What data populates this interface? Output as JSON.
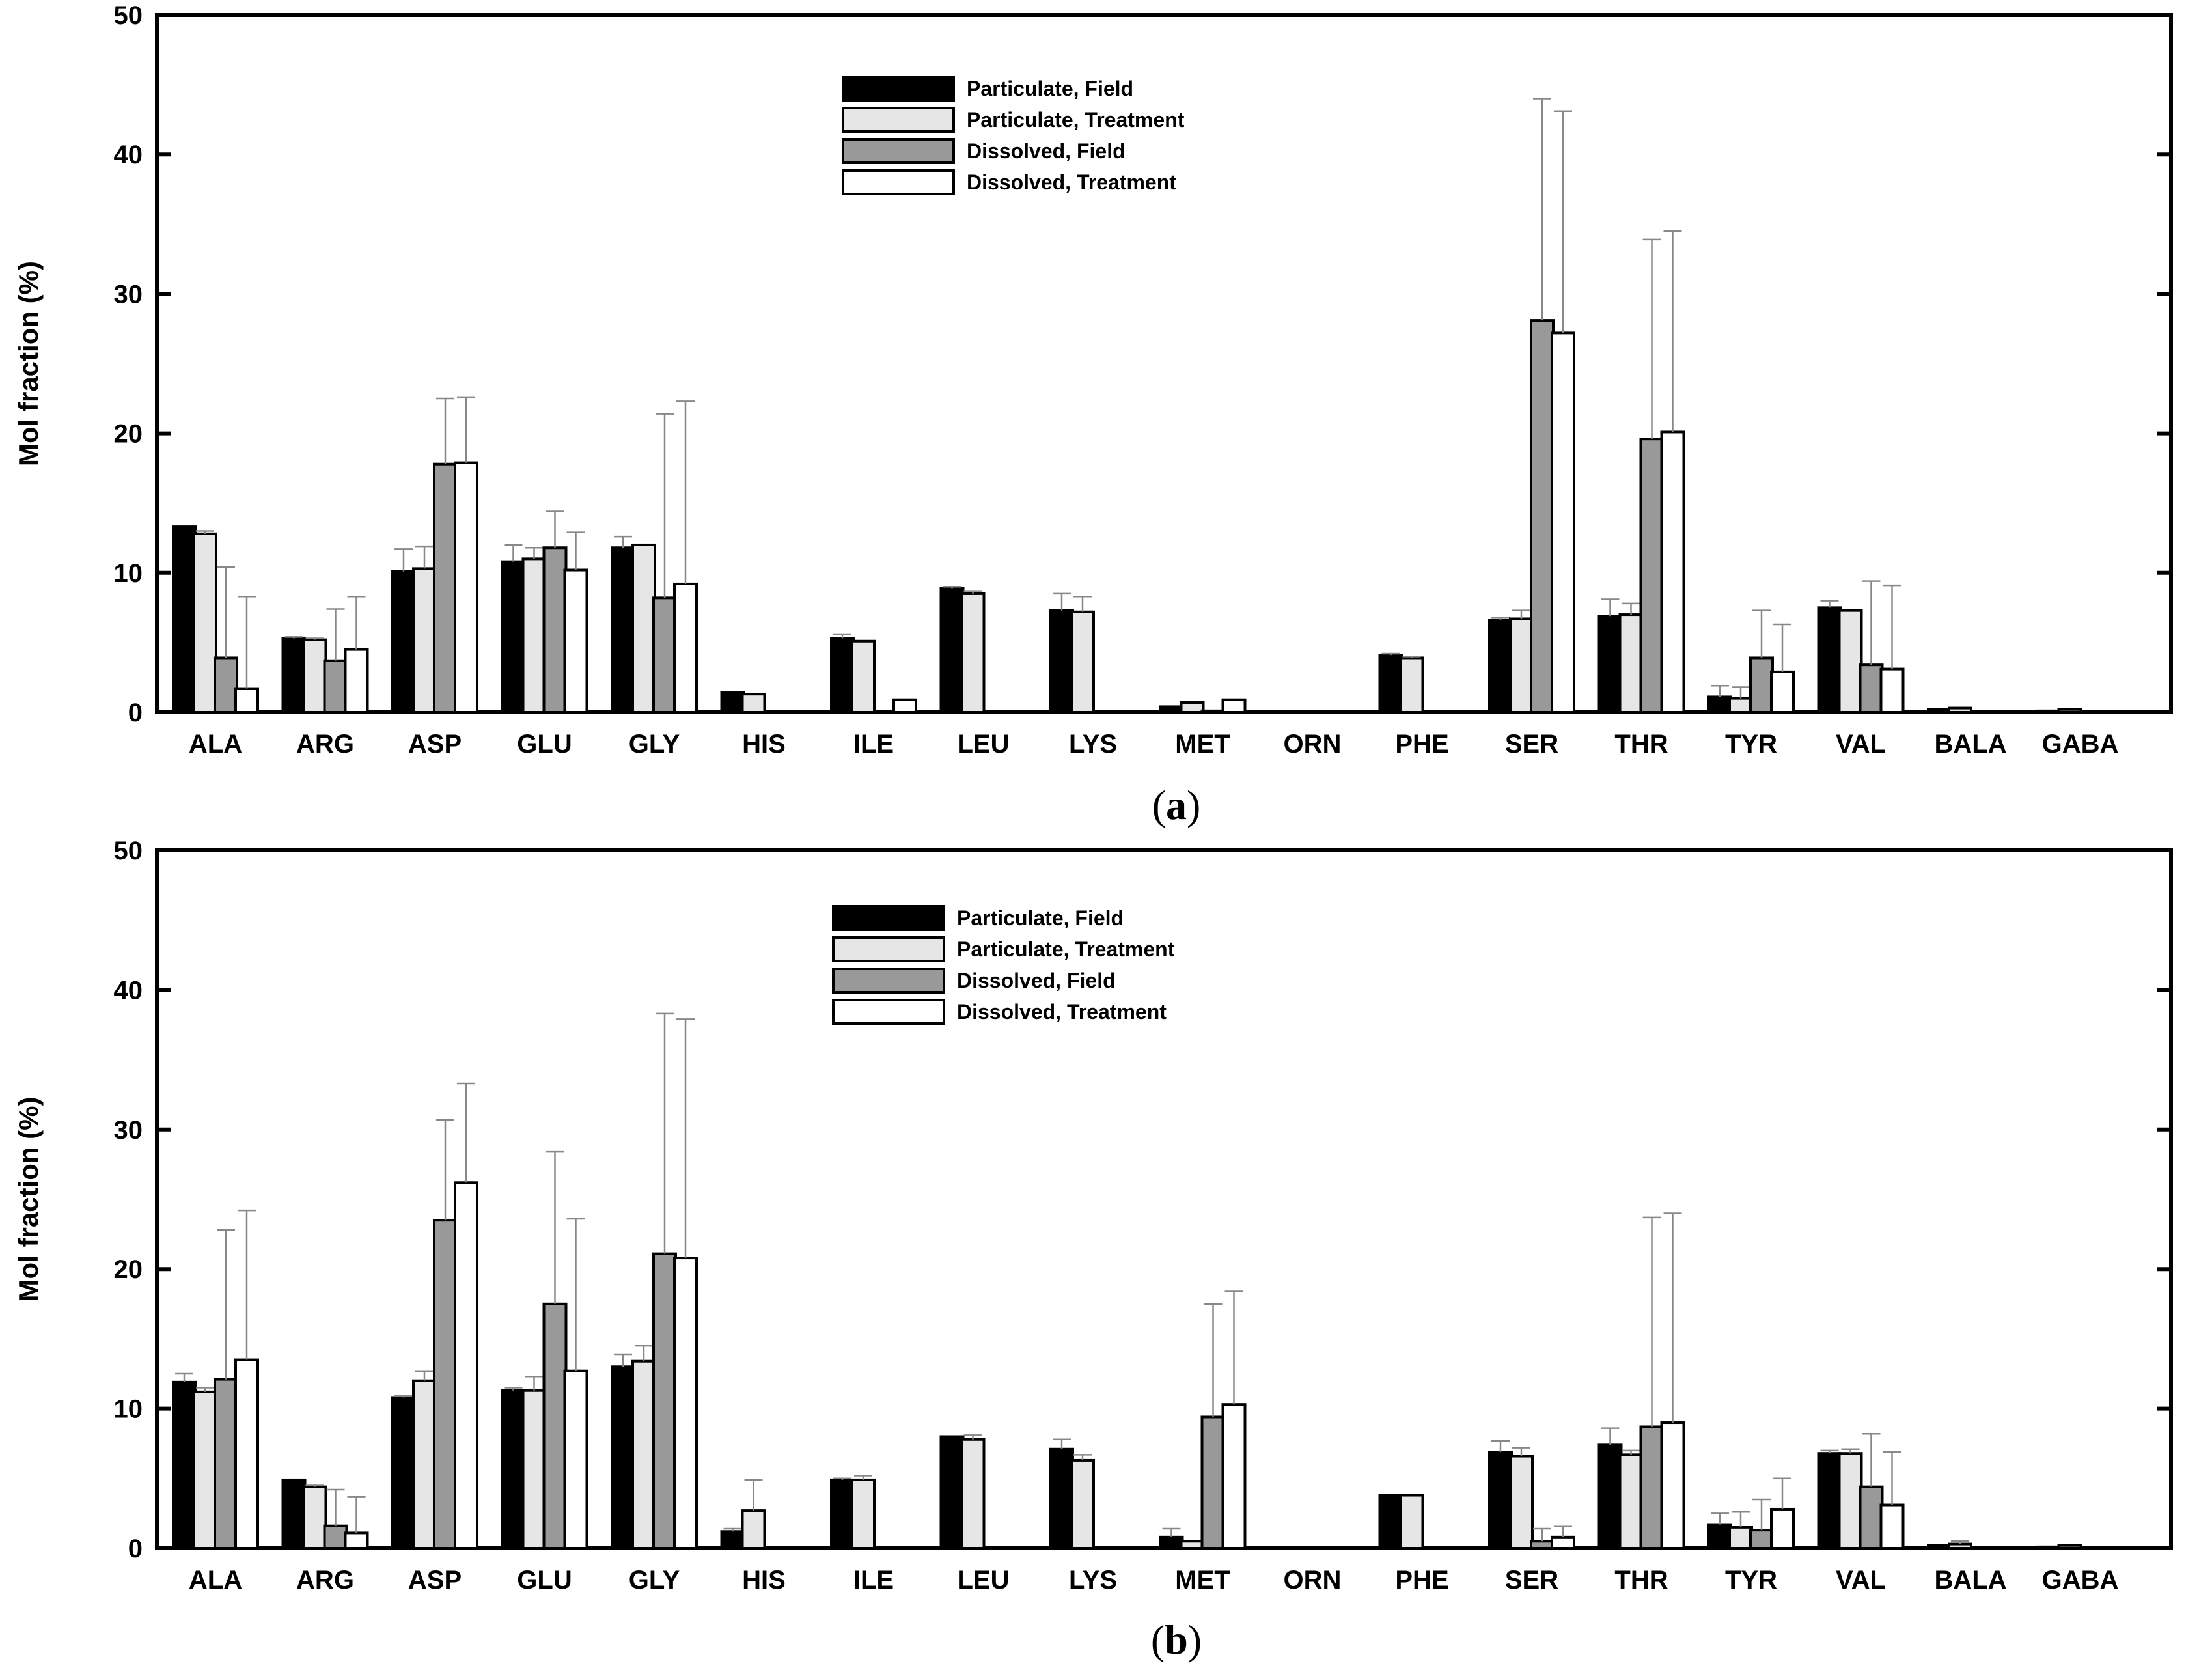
{
  "chart_data": [
    {
      "type": "bar",
      "panel_label": "a",
      "title": "",
      "xlabel": "",
      "ylabel": "Mol fraction (%)",
      "ylim": [
        0,
        50
      ],
      "yticks": [
        0,
        10,
        20,
        30,
        40,
        50
      ],
      "legend_position": "top-center",
      "categories": [
        "ALA",
        "ARG",
        "ASP",
        "GLU",
        "GLY",
        "HIS",
        "ILE",
        "LEU",
        "LYS",
        "MET",
        "ORN",
        "PHE",
        "SER",
        "THR",
        "TYR",
        "VAL",
        "BALA",
        "GABA"
      ],
      "series": [
        {
          "name": "Particulate, Field",
          "color": "#000000",
          "values": [
            13.3,
            5.3,
            10.1,
            10.8,
            11.8,
            1.4,
            5.3,
            8.9,
            7.3,
            0.4,
            0,
            4.1,
            6.6,
            6.9,
            1.1,
            7.5,
            0.2,
            0.1
          ],
          "errors": [
            0,
            0.1,
            1.6,
            1.2,
            0.8,
            0,
            0.3,
            0.1,
            1.2,
            0,
            0,
            0.1,
            0.2,
            1.2,
            0.8,
            0.5,
            0,
            0
          ]
        },
        {
          "name": "Particulate, Treatment",
          "color": "#e6e6e6",
          "values": [
            12.8,
            5.2,
            10.3,
            11.0,
            12.0,
            1.3,
            5.1,
            8.5,
            7.2,
            0.7,
            0,
            3.9,
            6.7,
            7.0,
            1.0,
            7.3,
            0.3,
            0.2
          ],
          "errors": [
            0.2,
            0.1,
            1.6,
            0.8,
            0,
            0,
            0,
            0.2,
            1.1,
            0,
            0,
            0.1,
            0.6,
            0.8,
            0.8,
            0,
            0,
            0
          ]
        },
        {
          "name": "Dissolved, Field",
          "color": "#999999",
          "values": [
            3.9,
            3.7,
            17.8,
            11.8,
            8.2,
            0,
            0,
            0,
            0,
            0.1,
            0,
            0,
            28.1,
            19.6,
            3.9,
            3.4,
            0,
            0
          ],
          "errors": [
            6.5,
            3.7,
            4.7,
            2.6,
            13.2,
            0,
            0,
            0,
            0,
            0,
            0,
            0,
            15.9,
            14.3,
            3.4,
            6.0,
            0,
            0
          ]
        },
        {
          "name": "Dissolved, Treatment",
          "color": "#ffffff",
          "values": [
            1.7,
            4.5,
            17.9,
            10.2,
            9.2,
            0,
            0.9,
            0,
            0,
            0.9,
            0,
            0,
            27.2,
            20.1,
            2.9,
            3.1,
            0,
            0
          ],
          "errors": [
            6.6,
            3.8,
            4.7,
            2.7,
            13.1,
            0,
            0,
            0,
            0,
            0,
            0,
            0,
            15.9,
            14.4,
            3.4,
            6.0,
            0,
            0
          ]
        }
      ]
    },
    {
      "type": "bar",
      "panel_label": "b",
      "title": "",
      "xlabel": "",
      "ylabel": "Mol fraction (%)",
      "ylim": [
        0,
        50
      ],
      "yticks": [
        0,
        10,
        20,
        30,
        40,
        50
      ],
      "legend_position": "top-center",
      "categories": [
        "ALA",
        "ARG",
        "ASP",
        "GLU",
        "GLY",
        "HIS",
        "ILE",
        "LEU",
        "LYS",
        "MET",
        "ORN",
        "PHE",
        "SER",
        "THR",
        "TYR",
        "VAL",
        "BALA",
        "GABA"
      ],
      "series": [
        {
          "name": "Particulate, Field",
          "color": "#000000",
          "values": [
            11.9,
            4.9,
            10.8,
            11.3,
            13.0,
            1.2,
            4.9,
            8.0,
            7.1,
            0.8,
            0,
            3.8,
            6.9,
            7.4,
            1.7,
            6.8,
            0.2,
            0.1
          ],
          "errors": [
            0.6,
            0,
            0.1,
            0.2,
            0.9,
            0.2,
            0.1,
            0,
            0.7,
            0.6,
            0,
            0,
            0.8,
            1.2,
            0.8,
            0.2,
            0,
            0
          ]
        },
        {
          "name": "Particulate, Treatment",
          "color": "#e6e6e6",
          "values": [
            11.2,
            4.4,
            12.0,
            11.3,
            13.4,
            2.7,
            4.9,
            7.8,
            6.3,
            0.5,
            0,
            3.8,
            6.6,
            6.7,
            1.5,
            6.8,
            0.3,
            0.2
          ],
          "errors": [
            0.3,
            0.1,
            0.7,
            1.0,
            1.1,
            2.2,
            0.3,
            0.3,
            0.4,
            0,
            0,
            0,
            0.6,
            0.3,
            1.1,
            0.3,
            0.2,
            0
          ]
        },
        {
          "name": "Dissolved, Field",
          "color": "#999999",
          "values": [
            12.1,
            1.6,
            23.5,
            17.5,
            21.1,
            0,
            0,
            0,
            0,
            9.4,
            0,
            0,
            0.5,
            8.7,
            1.3,
            4.4,
            0,
            0
          ],
          "errors": [
            10.7,
            2.6,
            7.2,
            10.9,
            17.2,
            0,
            0,
            0,
            0,
            8.1,
            0,
            0,
            0.9,
            15.0,
            2.2,
            3.8,
            0,
            0
          ]
        },
        {
          "name": "Dissolved, Treatment",
          "color": "#ffffff",
          "values": [
            13.5,
            1.1,
            26.2,
            12.7,
            20.8,
            0,
            0,
            0,
            0,
            10.3,
            0,
            0,
            0.8,
            9.0,
            2.8,
            3.1,
            0,
            0
          ],
          "errors": [
            10.7,
            2.6,
            7.1,
            10.9,
            17.1,
            0,
            0,
            0,
            0,
            8.1,
            0,
            0,
            0.8,
            15.0,
            2.2,
            3.8,
            0,
            0
          ]
        }
      ]
    }
  ]
}
